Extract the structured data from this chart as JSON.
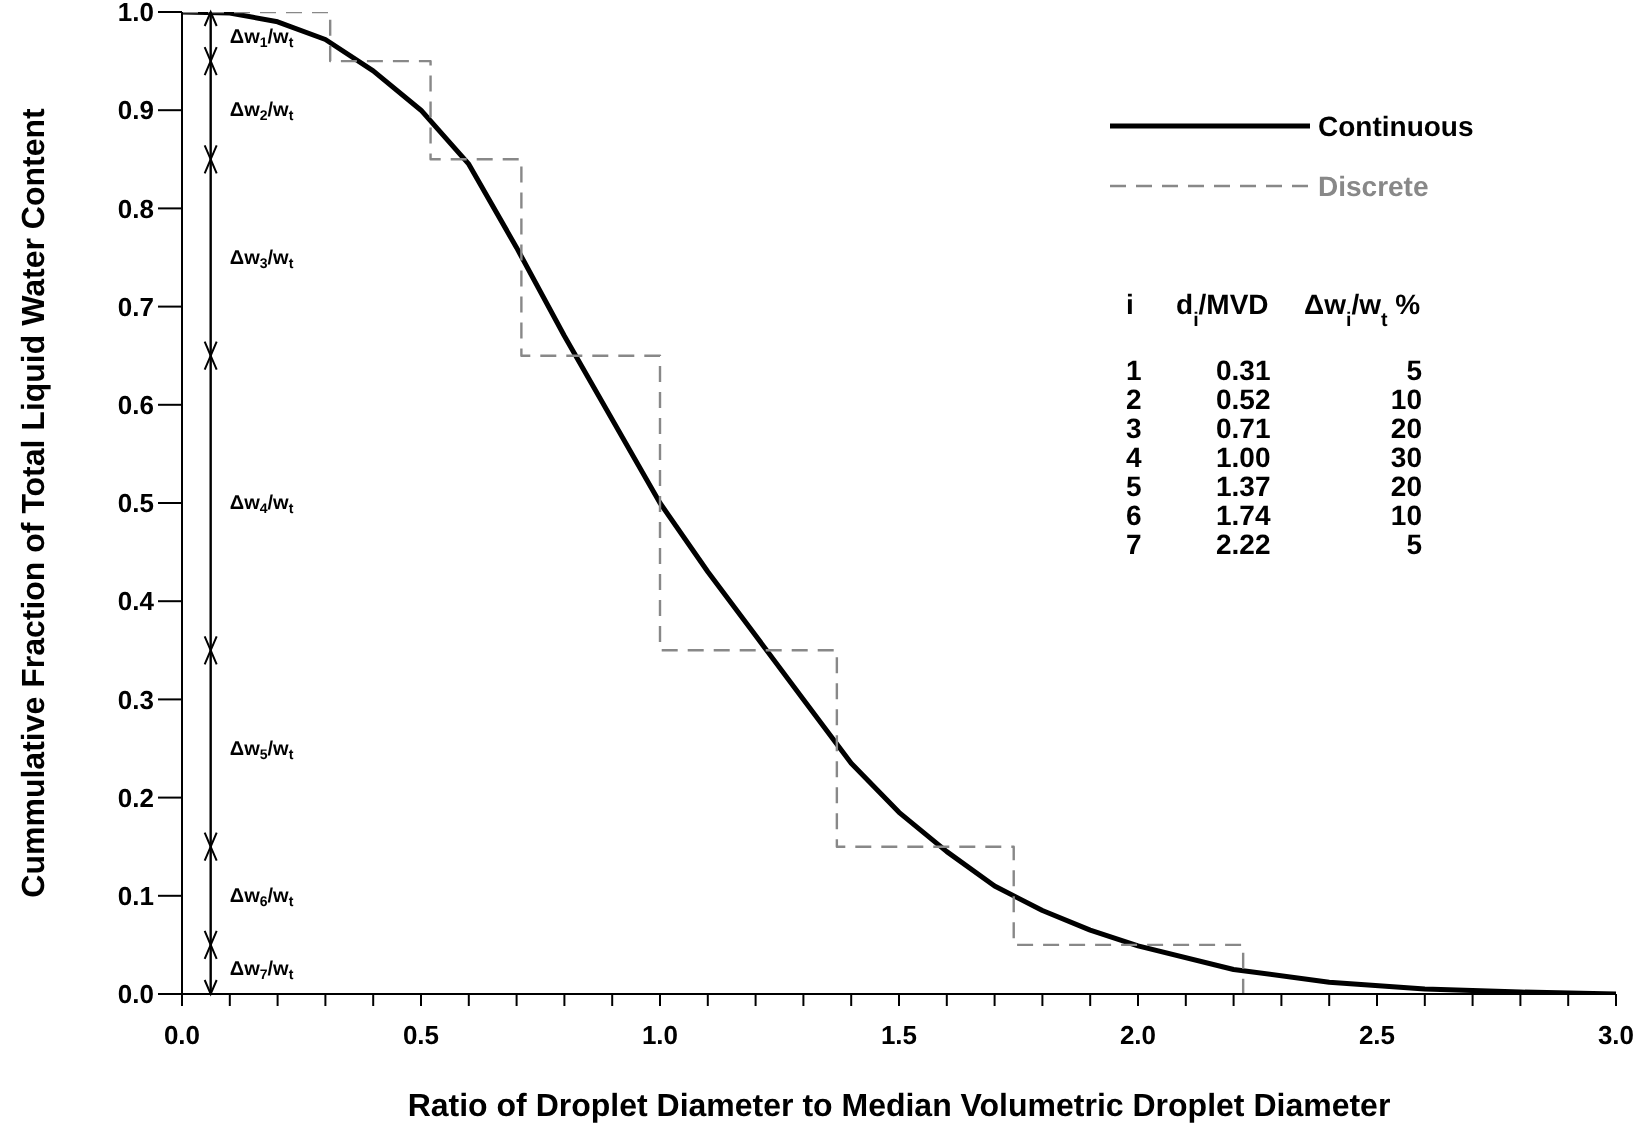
{
  "chart_data": {
    "type": "line",
    "xlabel": "Ratio of Droplet Diameter to Median Volumetric Droplet Diameter",
    "ylabel": "Cummulative Fraction of Total Liquid Water Content",
    "xlim": [
      0,
      3
    ],
    "xticks": [
      {
        "value": 0,
        "label": "0.0"
      },
      {
        "value": 0.1,
        "label": null
      },
      {
        "value": 0.2,
        "label": null
      },
      {
        "value": 0.3,
        "label": null
      },
      {
        "value": 0.4,
        "label": null
      },
      {
        "value": 0.5,
        "label": "0.5"
      },
      {
        "value": 0.6,
        "label": null
      },
      {
        "value": 0.7,
        "label": null
      },
      {
        "value": 0.8,
        "label": null
      },
      {
        "value": 0.9,
        "label": null
      },
      {
        "value": 1,
        "label": "1.0"
      },
      {
        "value": 1.1,
        "label": null
      },
      {
        "value": 1.2,
        "label": null
      },
      {
        "value": 1.3,
        "label": null
      },
      {
        "value": 1.4,
        "label": null
      },
      1.5,
      {
        "value": 1.6,
        "label": null
      },
      {
        "value": 1.7,
        "label": null
      },
      {
        "value": 1.8,
        "label": null
      },
      {
        "value": 1.9,
        "label": null
      },
      {
        "value": 2,
        "label": "2.0"
      },
      {
        "value": 2.1,
        "label": null
      },
      {
        "value": 2.2,
        "label": null
      },
      {
        "value": 2.3,
        "label": null
      },
      {
        "value": 2.4,
        "label": null
      },
      2.5,
      {
        "value": 2.6,
        "label": null
      },
      {
        "value": 2.7,
        "label": null
      },
      {
        "value": 2.8,
        "label": null
      },
      {
        "value": 2.9,
        "label": null
      },
      {
        "value": 3,
        "label": "3.0"
      }
    ],
    "ylim": [
      0,
      1
    ],
    "yticks": [
      {
        "value": 0,
        "label": "0.0"
      },
      0.1,
      0.2,
      0.3,
      0.4,
      0.5,
      0.6,
      0.7,
      0.8,
      0.9,
      {
        "value": 1,
        "label": "1.0"
      }
    ],
    "legend": "top right",
    "series": [
      {
        "name": "Continuous",
        "color": "#000000",
        "line_style": "solid",
        "x": [
          0,
          0.1,
          0.2,
          0.3,
          0.4,
          0.5,
          0.6,
          0.7,
          0.8,
          0.9,
          1.0,
          1.1,
          1.2,
          1.3,
          1.4,
          1.5,
          1.6,
          1.7,
          1.8,
          1.9,
          2.0,
          2.2,
          2.4,
          2.6,
          2.8,
          3.0
        ],
        "values": [
          1,
          0.999,
          0.99,
          0.972,
          0.94,
          0.9,
          0.845,
          0.76,
          0.67,
          0.585,
          0.5,
          0.43,
          0.365,
          0.3,
          0.235,
          0.185,
          0.145,
          0.11,
          0.085,
          0.065,
          0.049,
          0.025,
          0.012,
          0.005,
          0.002,
          0
        ]
      },
      {
        "name": "Discrete",
        "type": "step",
        "color": "#888888",
        "line_style": "dashed",
        "x": [
          0,
          0.31,
          0.52,
          0.71,
          1.0,
          1.37,
          1.74,
          2.22
        ],
        "values": [
          1,
          0.95,
          0.85,
          0.65,
          0.35,
          0.15,
          0.05,
          0
        ]
      }
    ],
    "annotations": [
      "Δw$_{1}$/w$_{t}$",
      "Δw$_{2}$/w$_{t}$",
      "Δw$_{3}$/w$_{t}$",
      "Δw$_{4}$/w$_{t}$",
      "Δw$_{5}$/w$_{t}$",
      "Δw$_{6}$/w$_{t}$",
      "Δw$_{7}$/w$_{t}$",
      "i d$_{i}$/MVD Δw$_{i}$/w$_{t}$ %",
      "1 0.31 5",
      "2 0.52 10",
      "3 0.71 20",
      "4 1.00 30",
      "5 1.37 20",
      "6 1.74 10",
      "7 2.22 5"
    ]
  }
}
